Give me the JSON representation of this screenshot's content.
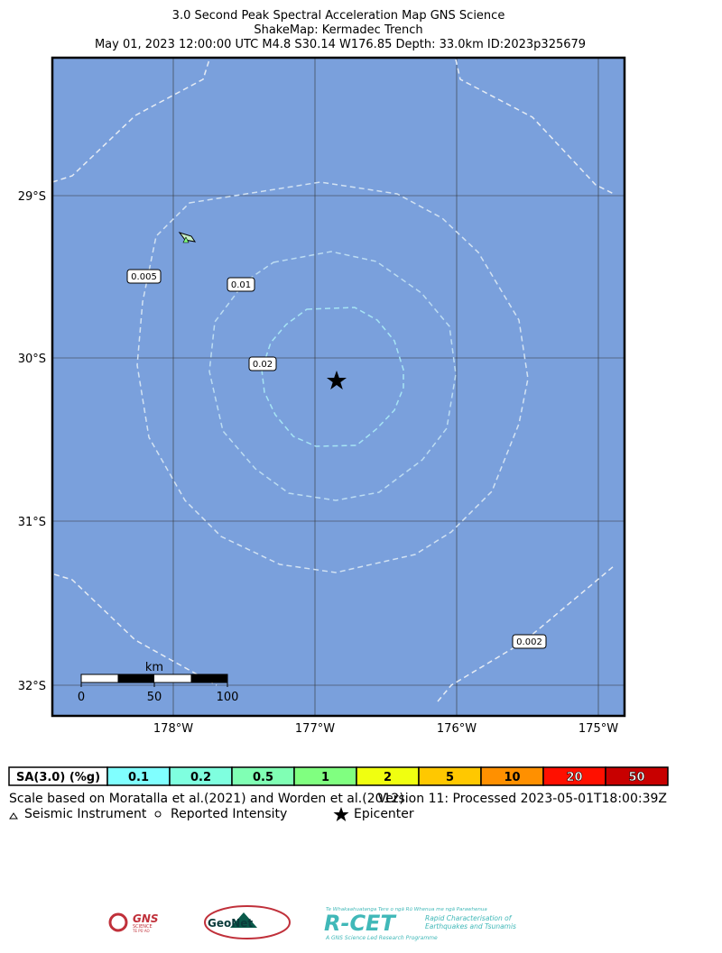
{
  "header": {
    "title_lines": [
      "3.0 Second Peak Spectral Acceleration Map GNS Science",
      "ShakeMap: Kermadec Trench",
      "May 01, 2023 12:00:00 UTC M4.8 S30.14 W176.85 Depth: 33.0km ID:2023p325679"
    ]
  },
  "map": {
    "lat_labels": [
      "29°S",
      "30°S",
      "31°S",
      "32°S"
    ],
    "lon_labels": [
      "178°W",
      "177°W",
      "176°W",
      "175°W"
    ],
    "contour_labels": [
      "0.005",
      "0.01",
      "0.02",
      "0.002"
    ],
    "scale": {
      "unit": "km",
      "labels": [
        "0",
        "50",
        "100"
      ]
    }
  },
  "legend": {
    "title": "SA(3.0) (%g)",
    "bins": [
      "0.1",
      "0.2",
      "0.5",
      "1",
      "2",
      "5",
      "10",
      "20",
      "50"
    ]
  },
  "footer": {
    "scale_note": "Scale based on Moratalla et al.(2021) and Worden et al.(2012)",
    "version": "Version 11: Processed 2023-05-01T18:00:39Z",
    "symbols": [
      "Seismic Instrument",
      "Reported Intensity",
      "Epicenter"
    ]
  },
  "logos": {
    "gns": "GNS",
    "gns_sub": "SCIENCE",
    "gns_maori": "TE PŪ AO",
    "geonet": "GeoNet",
    "rcet_maori": "Te Whakaahuatanga Tere o ngā Rū Whenua me ngā Parawhenua",
    "rcet": "R-CET",
    "rcet_sub1": "Rapid Characterisation of",
    "rcet_sub2": "Earthquakes and Tsunamis",
    "rcet_led": "A GNS Science Led Research Programme"
  }
}
